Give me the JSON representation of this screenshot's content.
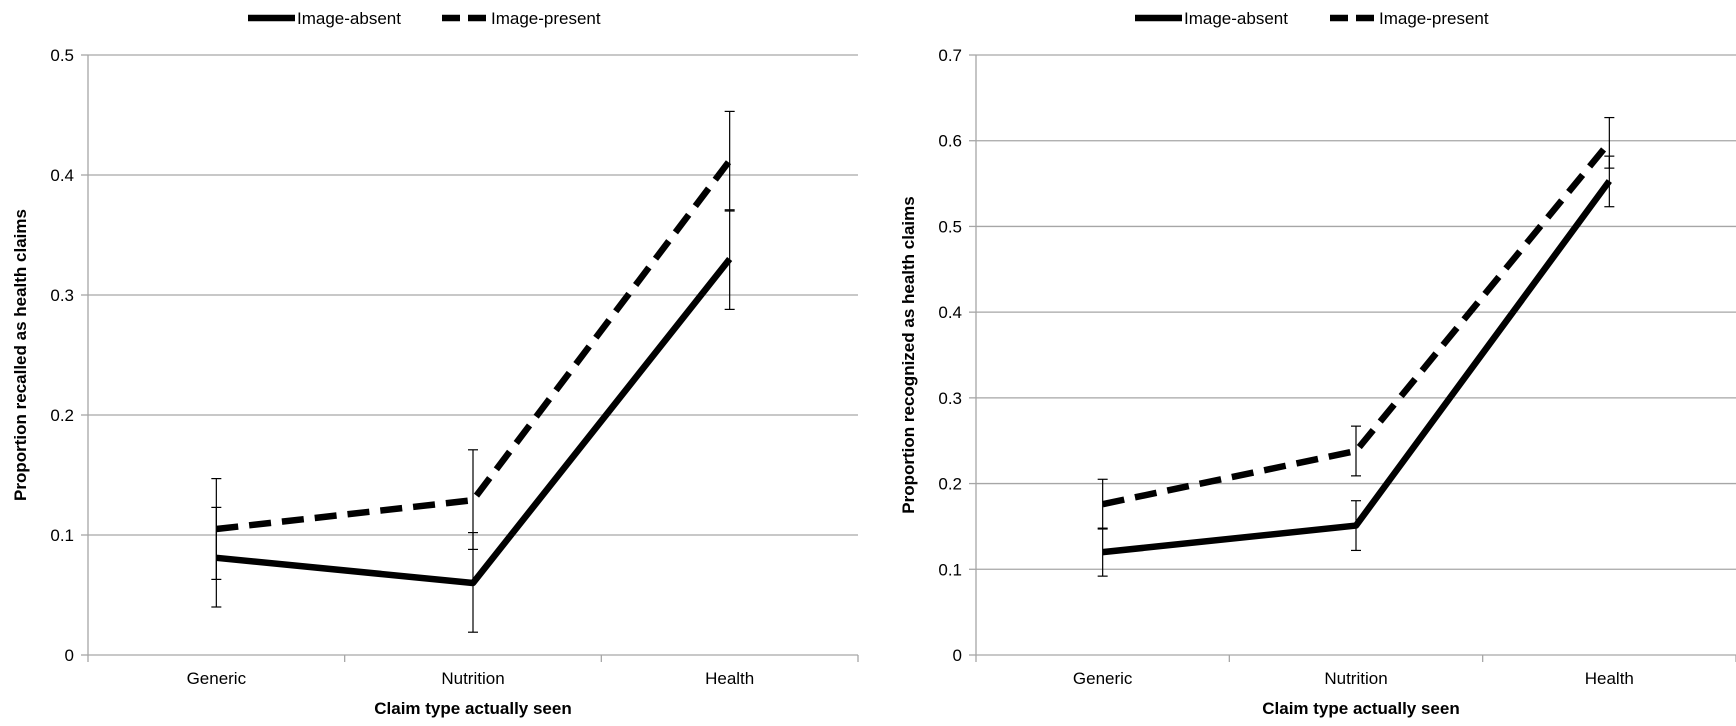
{
  "chart_data": [
    {
      "type": "line",
      "categories": [
        "Generic",
        "Nutrition",
        "Health"
      ],
      "xlabel": "Claim type actually seen",
      "ylabel": "Proportion recalled as health claims",
      "ylim": [
        0,
        0.5
      ],
      "yticks": [
        "0",
        "0.1",
        "0.2",
        "0.3",
        "0.4",
        "0.5"
      ],
      "grid": true,
      "legend_position": "top",
      "series": [
        {
          "name": "Image-absent",
          "style": "solid",
          "color": "#000000",
          "values": [
            0.081,
            0.06,
            0.33
          ],
          "err_low": [
            0.04,
            0.019,
            0.288
          ],
          "err_high": [
            0.123,
            0.102,
            0.371
          ]
        },
        {
          "name": "Image-present",
          "style": "dashed",
          "color": "#000000",
          "values": [
            0.105,
            0.129,
            0.412
          ],
          "err_low": [
            0.063,
            0.088,
            0.37
          ],
          "err_high": [
            0.147,
            0.171,
            0.453
          ]
        }
      ]
    },
    {
      "type": "line",
      "categories": [
        "Generic",
        "Nutrition",
        "Health"
      ],
      "xlabel": "Claim type actually seen",
      "ylabel": "Proportion recognized as health claims",
      "ylim": [
        0,
        0.7
      ],
      "yticks": [
        "0",
        "0.1",
        "0.2",
        "0.3",
        "0.4",
        "0.5",
        "0.6",
        "0.7"
      ],
      "grid": true,
      "legend_position": "top",
      "series": [
        {
          "name": "Image-absent",
          "style": "solid",
          "color": "#000000",
          "values": [
            0.12,
            0.151,
            0.553
          ],
          "err_low": [
            0.092,
            0.122,
            0.523
          ],
          "err_high": [
            0.148,
            0.18,
            0.582
          ]
        },
        {
          "name": "Image-present",
          "style": "dashed",
          "color": "#000000",
          "values": [
            0.176,
            0.238,
            0.598
          ],
          "err_low": [
            0.147,
            0.209,
            0.568
          ],
          "err_high": [
            0.205,
            0.267,
            0.627
          ]
        }
      ]
    }
  ]
}
